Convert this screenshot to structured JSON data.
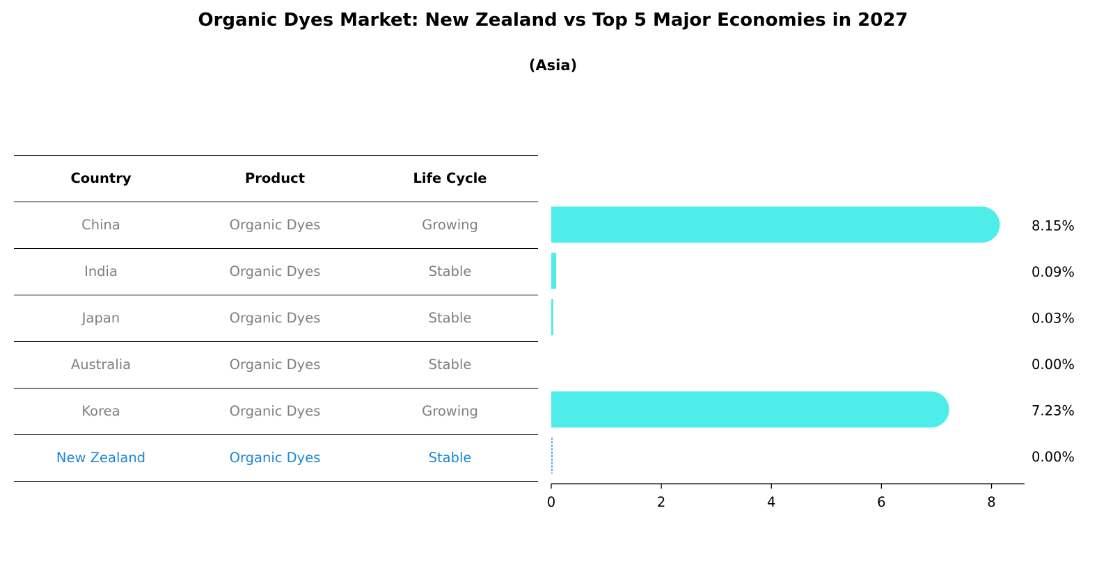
{
  "title": "Organic Dyes Market: New Zealand vs Top 5 Major Economies in 2027",
  "subtitle": "(Asia)",
  "colors": {
    "bar": "#4eede9",
    "highlight": "#1a86d6",
    "muted": "#7f7f7f"
  },
  "table": {
    "headers": [
      "Country",
      "Product",
      "Life Cycle"
    ],
    "rows": [
      {
        "country": "China",
        "product": "Organic Dyes",
        "life_cycle": "Growing"
      },
      {
        "country": "India",
        "product": "Organic Dyes",
        "life_cycle": "Stable"
      },
      {
        "country": "Japan",
        "product": "Organic Dyes",
        "life_cycle": "Stable"
      },
      {
        "country": "Australia",
        "product": "Organic Dyes",
        "life_cycle": "Stable"
      },
      {
        "country": "Korea",
        "product": "Organic Dyes",
        "life_cycle": "Growing"
      },
      {
        "country": "New Zealand",
        "product": "Organic Dyes",
        "life_cycle": "Stable"
      }
    ]
  },
  "chart_data": {
    "type": "bar",
    "orientation": "horizontal",
    "categories": [
      "China",
      "India",
      "Japan",
      "Australia",
      "Korea",
      "New Zealand"
    ],
    "values": [
      8.15,
      0.09,
      0.03,
      0.0,
      7.23,
      0.0
    ],
    "value_labels": [
      "8.15%",
      "0.09%",
      "0.03%",
      "0.00%",
      "7.23%",
      "0.00%"
    ],
    "highlight_category": "New Zealand",
    "xlim": [
      0,
      8.55
    ],
    "xticks": [
      0,
      2,
      4,
      6,
      8
    ],
    "xlabel": "",
    "ylabel": ""
  }
}
